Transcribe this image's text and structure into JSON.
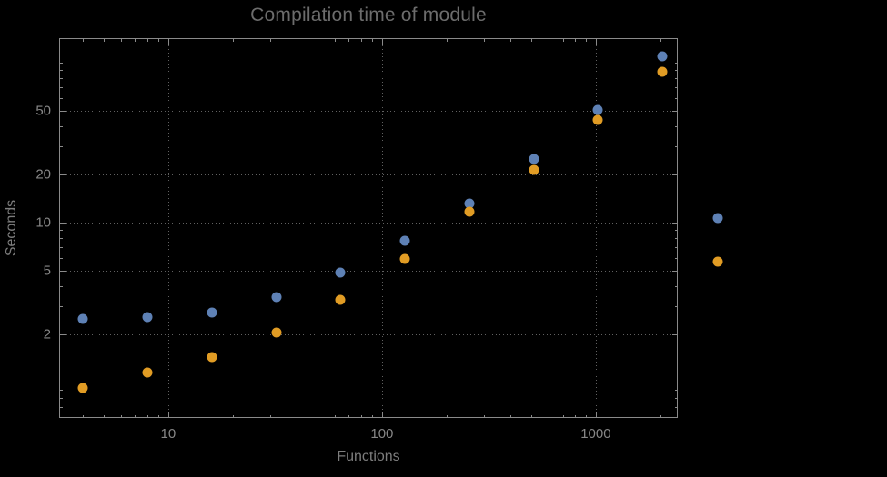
{
  "chart_data": {
    "type": "scatter",
    "title": "Compilation time of module",
    "xlabel": "Functions",
    "ylabel": "Seconds",
    "x_scale": "log",
    "y_scale": "log",
    "x_range": [
      3.09,
      2417
    ],
    "y_range": [
      0.6,
      142.4
    ],
    "x_ticks": [
      10,
      100,
      1000
    ],
    "y_ticks": [
      2,
      5,
      10,
      20,
      50
    ],
    "grid": "dotted",
    "legend_position": "right-outside",
    "x": [
      4,
      8,
      16,
      32,
      64,
      128,
      256,
      512,
      1024,
      2048
    ],
    "series": [
      {
        "name": "blue",
        "color": "#5e81b5",
        "values": [
          2.5,
          2.55,
          2.75,
          3.4,
          4.9,
          7.7,
          13.2,
          25,
          51,
          110
        ]
      },
      {
        "name": "orange",
        "color": "#e19c24",
        "values": [
          0.92,
          1.15,
          1.45,
          2.05,
          3.3,
          5.9,
          11.7,
          21.5,
          44,
          88
        ]
      }
    ],
    "legend_markers": [
      {
        "name": "blue",
        "color": "#5e81b5"
      },
      {
        "name": "orange",
        "color": "#e19c24"
      }
    ]
  },
  "colors": {
    "background": "#000000",
    "frame": "#8a8a8a",
    "grid": "#616161",
    "tick_labels": "#878787",
    "axis_labels": "#7d7d7d",
    "title": "#6c6c6c",
    "series_blue": "#5e81b5",
    "series_orange": "#e19c24"
  }
}
